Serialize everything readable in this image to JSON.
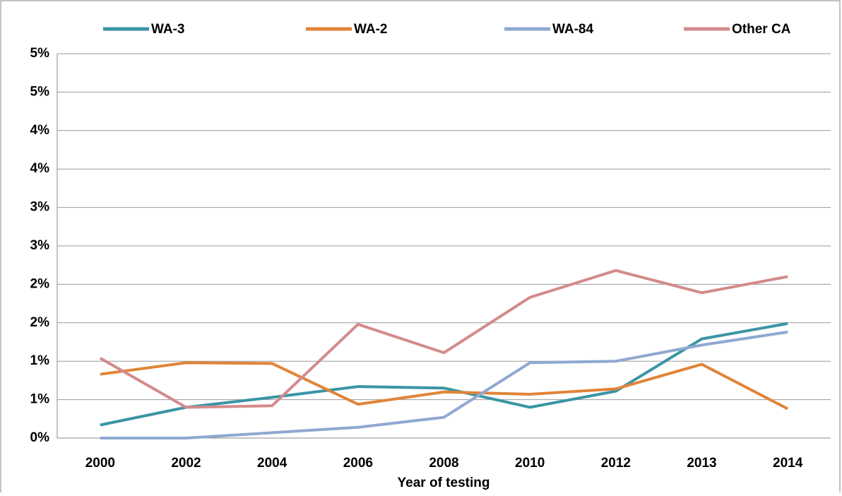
{
  "chart_data": {
    "type": "line",
    "x_label": "Year of testing",
    "categories": [
      "2000",
      "2002",
      "2004",
      "2006",
      "2008",
      "2010",
      "2012",
      "2013",
      "2014"
    ],
    "series": [
      {
        "name": "WA-3",
        "color": "#3a95a5",
        "values": [
          0.17,
          0.4,
          0.53,
          0.67,
          0.65,
          0.4,
          0.61,
          1.29,
          1.49
        ]
      },
      {
        "name": "WA-2",
        "color": "#e08438",
        "values": [
          0.83,
          0.98,
          0.97,
          0.44,
          0.6,
          0.57,
          0.64,
          0.96,
          0.38
        ]
      },
      {
        "name": "WA-84",
        "color": "#8fa8d2",
        "values": [
          0,
          0,
          0.07,
          0.14,
          0.27,
          0.98,
          1.0,
          1.21,
          1.38
        ]
      },
      {
        "name": "Other CA",
        "color": "#d38b8b",
        "values": [
          1.04,
          0.4,
          0.42,
          1.48,
          1.11,
          1.83,
          2.18,
          1.89,
          2.1
        ]
      }
    ],
    "ylim": [
      0,
      5
    ],
    "yticks": [
      {
        "value": 0,
        "label": "0%"
      },
      {
        "value": 0.5,
        "label": "1%"
      },
      {
        "value": 1,
        "label": "1%"
      },
      {
        "value": 1.5,
        "label": "2%"
      },
      {
        "value": 2,
        "label": "2%"
      },
      {
        "value": 2.5,
        "label": "3%"
      },
      {
        "value": 3,
        "label": "3%"
      },
      {
        "value": 3.5,
        "label": "4%"
      },
      {
        "value": 4,
        "label": "4%"
      },
      {
        "value": 4.5,
        "label": "5%"
      },
      {
        "value": 5,
        "label": "5%"
      }
    ],
    "grid": true,
    "legend": "top"
  }
}
